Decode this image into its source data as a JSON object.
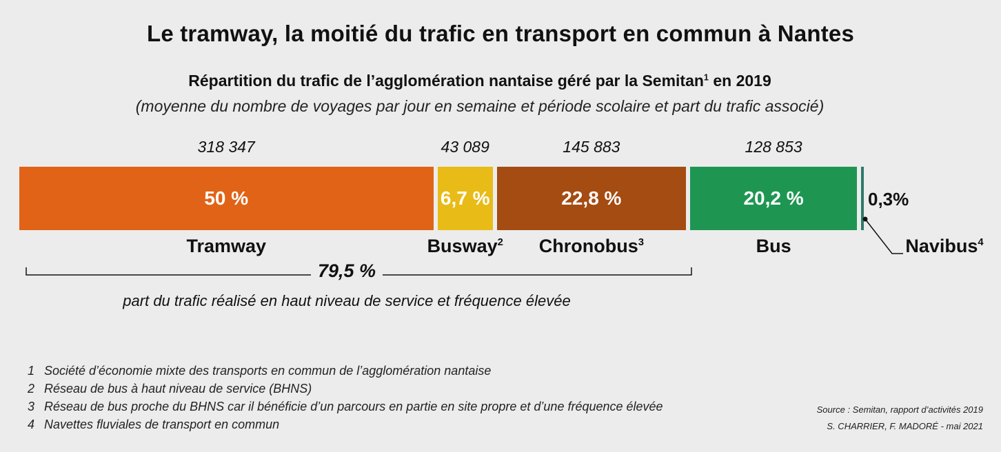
{
  "chart_data": {
    "type": "bar",
    "orientation": "horizontal-stacked",
    "title": "Le tramway, la moitié du trafic en transport en commun à Nantes",
    "subtitle_main": "Répartition du trafic de l’agglomération nantaise géré par la Semitan",
    "subtitle_sup": "1",
    "subtitle_year": " en 2019",
    "subtitle_detail": "(moyenne du nombre de voyages par jour en semaine et période scolaire et part du trafic associé)",
    "segments": [
      {
        "name": "Tramway",
        "sup": "",
        "share": 50,
        "share_label": "50 %",
        "count_label": "318 347",
        "color": "#e06317"
      },
      {
        "name": "Busway",
        "sup": "2",
        "share": 6.7,
        "share_label": "6,7 %",
        "count_label": "43 089",
        "color": "#e8bb16"
      },
      {
        "name": "Chronobus",
        "sup": "3",
        "share": 22.8,
        "share_label": "22,8 %",
        "count_label": "145 883",
        "color": "#a54c12"
      },
      {
        "name": "Bus",
        "sup": "",
        "share": 20.2,
        "share_label": "20,2 %",
        "count_label": "128 853",
        "color": "#1e9652"
      },
      {
        "name": "Navibus",
        "sup": "4",
        "share": 0.3,
        "share_label": "0,3%",
        "count_label": "",
        "color": "#2e7a6a"
      }
    ],
    "bracket": {
      "value": "79,5 %",
      "caption": "part du trafic réalisé en haut niveau de service et fréquence élevée"
    }
  },
  "footnotes": [
    {
      "num": "1",
      "text": "Société d’économie mixte des transports en commun de l’agglomération nantaise"
    },
    {
      "num": "2",
      "text": "Réseau de bus à haut niveau de service (BHNS)"
    },
    {
      "num": "3",
      "text": "Réseau de bus proche du BHNS car il bénéficie d’un parcours en partie en site propre et d’une fréquence élevée"
    },
    {
      "num": "4",
      "text": "Navettes fluviales de transport en commun"
    }
  ],
  "source": {
    "line1": "Source : Semitan, rapport d’activités 2019",
    "line2": "S. CHARRIER, F. MADORÉ  - mai 2021"
  }
}
